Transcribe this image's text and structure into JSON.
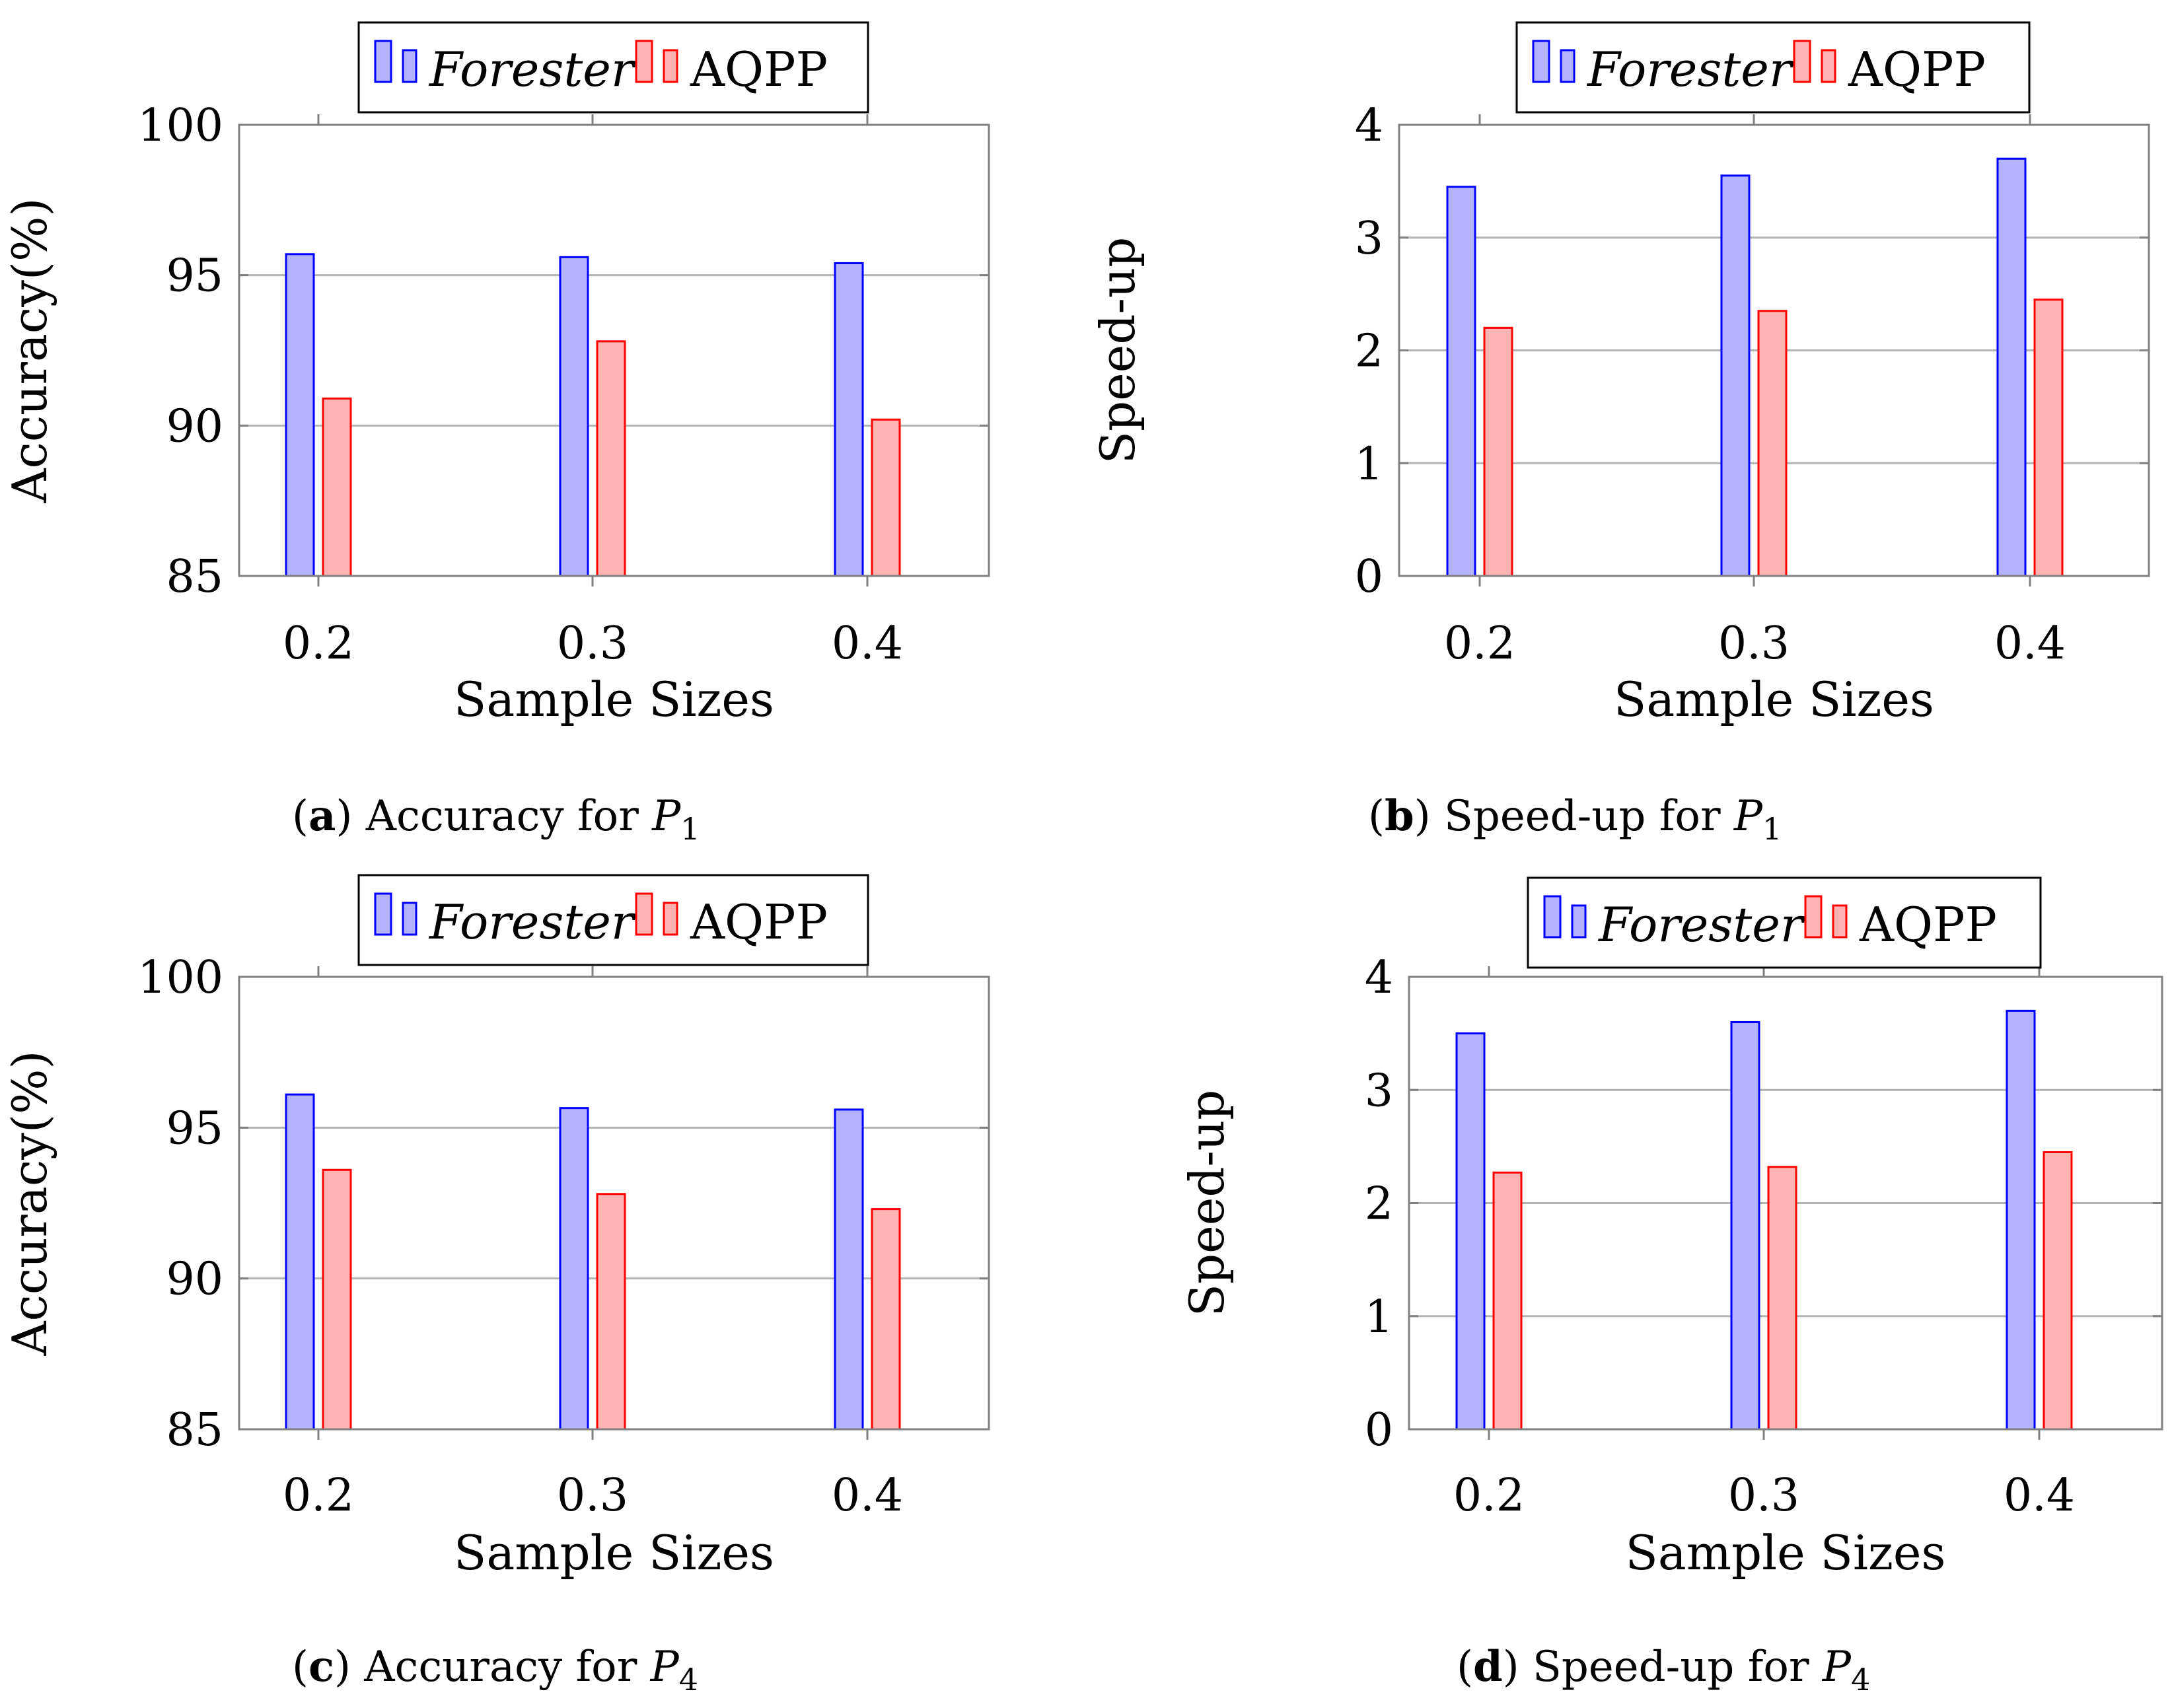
{
  "colors": {
    "forester_fill": "#b3b3ff",
    "forester_stroke": "#0000ff",
    "aqpp_fill": "#ffb3b3",
    "aqpp_stroke": "#ff0000",
    "grid": "#b3b3b3",
    "axis": "#808080"
  },
  "chart_data": [
    {
      "type": "bar",
      "panel_letter": "a",
      "caption_text": " Accuracy for ",
      "caption_var": "P",
      "caption_sub": "1",
      "title": "(a) Accuracy for P1",
      "xlabel": "Sample Sizes",
      "ylabel": "Accuracy(%)",
      "categories": [
        "0.2",
        "0.3",
        "0.4"
      ],
      "ylim": [
        85,
        100
      ],
      "yticks": [
        "85",
        "90",
        "95",
        "100"
      ],
      "grid": true,
      "legend": "top-center",
      "series": [
        {
          "name": "Forester",
          "values": [
            95.7,
            95.6,
            95.4
          ]
        },
        {
          "name": "AQPP",
          "values": [
            90.9,
            92.8,
            90.2
          ]
        }
      ]
    },
    {
      "type": "bar",
      "panel_letter": "b",
      "caption_text": " Speed-up for ",
      "caption_var": "P",
      "caption_sub": "1",
      "title": "(b) Speed-up for P1",
      "xlabel": "Sample Sizes",
      "ylabel": "Speed-up",
      "categories": [
        "0.2",
        "0.3",
        "0.4"
      ],
      "ylim": [
        0,
        4
      ],
      "yticks": [
        "0",
        "1",
        "2",
        "3",
        "4"
      ],
      "grid": true,
      "legend": "top-center",
      "series": [
        {
          "name": "Forester",
          "values": [
            3.45,
            3.55,
            3.7
          ]
        },
        {
          "name": "AQPP",
          "values": [
            2.2,
            2.35,
            2.45
          ]
        }
      ]
    },
    {
      "type": "bar",
      "panel_letter": "c",
      "caption_text": " Accuracy for ",
      "caption_var": "P",
      "caption_sub": "4",
      "title": "(c) Accuracy for P4",
      "xlabel": "Sample Sizes",
      "ylabel": "Accuracy(%)",
      "categories": [
        "0.2",
        "0.3",
        "0.4"
      ],
      "ylim": [
        85,
        100
      ],
      "yticks": [
        "85",
        "90",
        "95",
        "100"
      ],
      "grid": true,
      "legend": "top-center",
      "series": [
        {
          "name": "Forester",
          "values": [
            96.1,
            95.65,
            95.6
          ]
        },
        {
          "name": "AQPP",
          "values": [
            93.6,
            92.8,
            92.3
          ]
        }
      ]
    },
    {
      "type": "bar",
      "panel_letter": "d",
      "caption_text": " Speed-up for ",
      "caption_var": "P",
      "caption_sub": "4",
      "title": "(d) Speed-up for P4",
      "xlabel": "Sample Sizes",
      "ylabel": "Speed-up",
      "categories": [
        "0.2",
        "0.3",
        "0.4"
      ],
      "ylim": [
        0,
        4
      ],
      "yticks": [
        "0",
        "1",
        "2",
        "3",
        "4"
      ],
      "grid": true,
      "legend": "top-center",
      "series": [
        {
          "name": "Forester",
          "values": [
            3.5,
            3.6,
            3.7
          ]
        },
        {
          "name": "AQPP",
          "values": [
            2.27,
            2.32,
            2.45
          ]
        }
      ]
    }
  ]
}
